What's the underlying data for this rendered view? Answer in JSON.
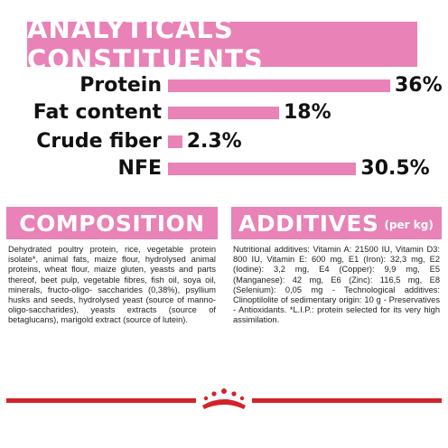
{
  "header": {
    "title": "ANALYTICALS CONSTITUENTS"
  },
  "nutrients": [
    {
      "label": "Protein",
      "value": "36%",
      "percent": 36
    },
    {
      "label": "Fat content",
      "value": "18%",
      "percent": 18
    },
    {
      "label": "Crude fiber",
      "value": "2.3%",
      "percent": 2.3
    },
    {
      "label": "NFE",
      "value": "30.5%",
      "percent": 30.5
    }
  ],
  "composition": {
    "title": "COMPOSITION",
    "text": "Dehydrated poultry protein, rice, vegetable protein isolate*, animal fats, maize flour, hydrolysed animal proteins, wheat flour, maize gluten, yeasts and parts thereof, beet pulp, vegetable fibres, fish oil, soya oil, minerals, fructo-oligo- saccharides (0,38%), psyllium husks and seeds, hydrolysed yeast (source of manno-oligo-saccharides), yeasts extracts (source of betaglucans), marigold extract (source of lutein)."
  },
  "additives": {
    "title": "ADDITIVES",
    "subtitle": "(per kg)",
    "text": "Nutritional additives: Vitamin A: 21500 IU, Vitamin D3: 800 IU, Vitamin E: 600 mg, E1 (Iron): 32,3 mg, E2 (Iodine): 3,2 mg, E4 (Copper): 9,9 mg, E5 (Manganese): 42 mg, E6 (Zinc): 116,5 mg, E8 (Selenium): 0,05 mg - Technological additives: Clinoptilolite of sedimentary origin: 10 g - Preservatives - Antioxidants. *L.I.P.: protein selected for its very high assimilation."
  },
  "colors": {
    "pink": "#e882b7",
    "brand_red": "#d2232a"
  },
  "footer": {
    "logo": "royal-canin-crown-icon"
  }
}
